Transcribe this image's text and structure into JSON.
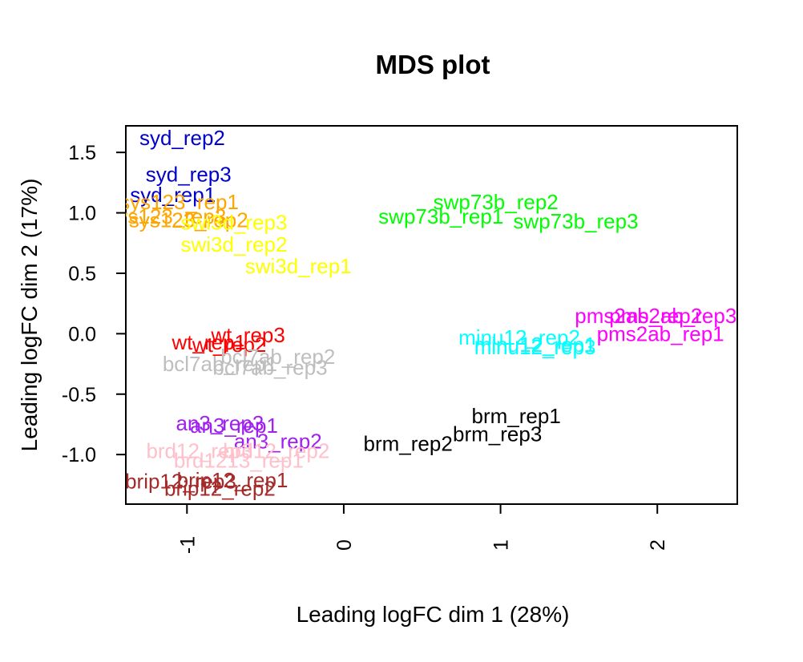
{
  "chart_data": {
    "type": "scatter",
    "title": "MDS plot",
    "xlabel": "Leading logFC dim 1 (28%)",
    "ylabel": "Leading logFC dim 2 (17%)",
    "xlim": [
      -1.39,
      2.51
    ],
    "ylim": [
      -1.41,
      1.72
    ],
    "x_ticks": [
      -1,
      0,
      1,
      2
    ],
    "y_ticks": [
      -1.0,
      -0.5,
      0.0,
      0.5,
      1.0,
      1.5
    ],
    "x_tick_labels": [
      "-1",
      "0",
      "1",
      "2"
    ],
    "y_tick_labels": [
      "-1.0",
      "-0.5",
      "0.0",
      "0.5",
      "1.0",
      "1.5"
    ],
    "grid": false,
    "legend": "none",
    "points": [
      {
        "label": "syd_rep2",
        "x": -1.03,
        "y": 1.62,
        "color": "#0000CD"
      },
      {
        "label": "syd_rep3",
        "x": -0.99,
        "y": 1.32,
        "color": "#0000CD"
      },
      {
        "label": "syd_rep1",
        "x": -1.09,
        "y": 1.15,
        "color": "#0000CD"
      },
      {
        "label": "sys123_rep1",
        "x": -1.05,
        "y": 1.09,
        "color": "#FFA500"
      },
      {
        "label": "sys123_rep3",
        "x": -1.13,
        "y": 0.97,
        "color": "#FFA500"
      },
      {
        "label": "sys123_rep2",
        "x": -0.99,
        "y": 0.94,
        "color": "#FFA500"
      },
      {
        "label": "swi3d_rep3",
        "x": -0.7,
        "y": 0.92,
        "color": "#FFFF00"
      },
      {
        "label": "swi3d_rep2",
        "x": -0.7,
        "y": 0.74,
        "color": "#FFFF00"
      },
      {
        "label": "swi3d_rep1",
        "x": -0.29,
        "y": 0.56,
        "color": "#FFFF00"
      },
      {
        "label": "swp73b_rep2",
        "x": 0.97,
        "y": 1.09,
        "color": "#00FF00"
      },
      {
        "label": "swp73b_rep1",
        "x": 0.62,
        "y": 0.97,
        "color": "#00FF00"
      },
      {
        "label": "swp73b_rep3",
        "x": 1.48,
        "y": 0.93,
        "color": "#00FF00"
      },
      {
        "label": "pms2ab_rep2",
        "x": 1.88,
        "y": 0.15,
        "color": "#FF00FF"
      },
      {
        "label": "pms2ab_rep3",
        "x": 2.1,
        "y": 0.15,
        "color": "#FF00FF"
      },
      {
        "label": "pms2ab_rep1",
        "x": 2.02,
        "y": 0.0,
        "color": "#FF00FF"
      },
      {
        "label": "minu12_rep2",
        "x": 1.12,
        "y": -0.03,
        "color": "#00FFFF"
      },
      {
        "label": "minu12_rep1",
        "x": 1.22,
        "y": -0.09,
        "color": "#00FFFF"
      },
      {
        "label": "minu12_rep3",
        "x": 1.22,
        "y": -0.11,
        "color": "#00FFFF"
      },
      {
        "label": "wt_rep3",
        "x": -0.61,
        "y": -0.01,
        "color": "#FF0000"
      },
      {
        "label": "wt_rep1",
        "x": -0.86,
        "y": -0.07,
        "color": "#FF0000"
      },
      {
        "label": "wt_rep2",
        "x": -0.73,
        "y": -0.09,
        "color": "#FF0000"
      },
      {
        "label": "bcl7ab_rep2",
        "x": -0.42,
        "y": -0.19,
        "color": "#BEBEBE"
      },
      {
        "label": "bcl7ab_rep1",
        "x": -0.79,
        "y": -0.25,
        "color": "#BEBEBE"
      },
      {
        "label": "bcl7ab_rep3",
        "x": -0.47,
        "y": -0.28,
        "color": "#BEBEBE"
      },
      {
        "label": "brm_rep1",
        "x": 1.1,
        "y": -0.68,
        "color": "#000000"
      },
      {
        "label": "brm_rep3",
        "x": 0.98,
        "y": -0.83,
        "color": "#000000"
      },
      {
        "label": "brm_rep2",
        "x": 0.41,
        "y": -0.91,
        "color": "#000000"
      },
      {
        "label": "an3_rep3",
        "x": -0.79,
        "y": -0.74,
        "color": "#A020F0"
      },
      {
        "label": "an3_rep1",
        "x": -0.7,
        "y": -0.76,
        "color": "#A020F0"
      },
      {
        "label": "an3_rep2",
        "x": -0.42,
        "y": -0.89,
        "color": "#A020F0"
      },
      {
        "label": "brd12_rep3",
        "x": -0.92,
        "y": -0.97,
        "color": "#FFC0CB"
      },
      {
        "label": "brd12_rep2",
        "x": -0.43,
        "y": -0.97,
        "color": "#FFC0CB"
      },
      {
        "label": "brd1213_rep1",
        "x": -0.67,
        "y": -1.05,
        "color": "#FFC0CB"
      },
      {
        "label": "brip12_rep3",
        "x": -1.04,
        "y": -1.22,
        "color": "#A52A2A"
      },
      {
        "label": "brip12_rep1",
        "x": -0.71,
        "y": -1.21,
        "color": "#A52A2A"
      },
      {
        "label": "brip12_rep2",
        "x": -0.79,
        "y": -1.28,
        "color": "#A52A2A"
      }
    ]
  }
}
